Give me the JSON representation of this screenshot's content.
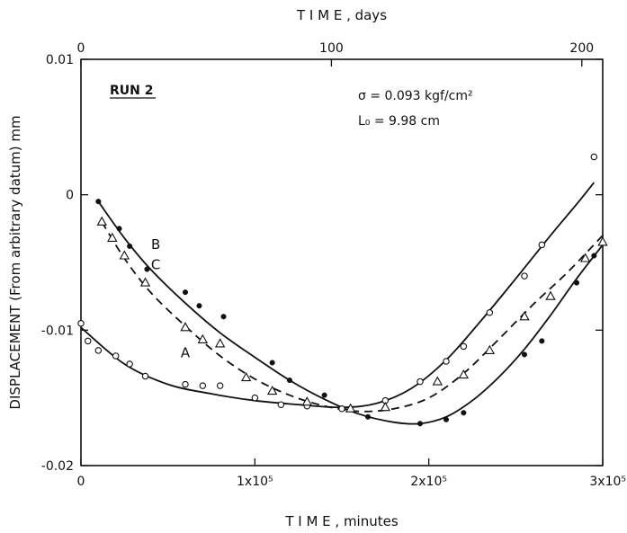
{
  "chart_data": {
    "type": "scatter",
    "title": "",
    "xlabel": "T I M E ,  minutes",
    "xlabel_top": "T I M E ,  days",
    "ylabel": "DISPLACEMENT (From arbitrary datum) mm",
    "xlim": [
      0,
      300000
    ],
    "ylim": [
      -0.02,
      0.01
    ],
    "grid": false,
    "x_ticks": [
      0,
      100000,
      200000,
      300000
    ],
    "x_tick_labels": [
      "0",
      "1x10⁵",
      "2x10⁵",
      "3x10⁵"
    ],
    "y_ticks": [
      -0.02,
      -0.01,
      0,
      0.01
    ],
    "y_tick_labels": [
      "-0.02",
      "-0.01",
      "0",
      "0.01"
    ],
    "x_top_ticks_days": [
      0,
      100,
      200
    ],
    "x_top_tick_labels": [
      "0",
      "100",
      "200"
    ],
    "annotations": {
      "run": "RUN 2",
      "sigma": "σ = 0.093 kgf/cm²",
      "length": "L₀ = 9.98 cm"
    },
    "series": [
      {
        "name": "A",
        "marker": "circle",
        "line": "solid",
        "points": [
          [
            0,
            -0.0095
          ],
          [
            4000,
            -0.0108
          ],
          [
            10000,
            -0.0115
          ],
          [
            20000,
            -0.0119
          ],
          [
            28000,
            -0.0125
          ],
          [
            37000,
            -0.0134
          ],
          [
            60000,
            -0.014
          ],
          [
            70000,
            -0.0141
          ],
          [
            80000,
            -0.0141
          ],
          [
            100000,
            -0.015
          ],
          [
            115000,
            -0.0155
          ],
          [
            130000,
            -0.0156
          ],
          [
            150000,
            -0.0158
          ],
          [
            175000,
            -0.0152
          ],
          [
            195000,
            -0.0138
          ],
          [
            210000,
            -0.0123
          ],
          [
            220000,
            -0.0112
          ],
          [
            235000,
            -0.0087
          ],
          [
            255000,
            -0.006
          ],
          [
            265000,
            -0.0037
          ],
          [
            295000,
            0.0028
          ]
        ],
        "curve": [
          [
            0,
            -0.0098
          ],
          [
            25000,
            -0.0125
          ],
          [
            50000,
            -0.014
          ],
          [
            75000,
            -0.0147
          ],
          [
            100000,
            -0.0152
          ],
          [
            125000,
            -0.0155
          ],
          [
            150000,
            -0.0157
          ],
          [
            170000,
            -0.0154
          ],
          [
            190000,
            -0.0143
          ],
          [
            210000,
            -0.0122
          ],
          [
            230000,
            -0.0093
          ],
          [
            250000,
            -0.0062
          ],
          [
            270000,
            -0.003
          ],
          [
            285000,
            -0.0007
          ],
          [
            295000,
            0.0009
          ]
        ]
      },
      {
        "name": "B",
        "marker": "dot",
        "line": "solid",
        "points": [
          [
            10000,
            -0.0005
          ],
          [
            22000,
            -0.0025
          ],
          [
            28000,
            -0.0038
          ],
          [
            38000,
            -0.0055
          ],
          [
            60000,
            -0.0072
          ],
          [
            68000,
            -0.0082
          ],
          [
            82000,
            -0.009
          ],
          [
            110000,
            -0.0124
          ],
          [
            120000,
            -0.0137
          ],
          [
            140000,
            -0.0148
          ],
          [
            165000,
            -0.0164
          ],
          [
            195000,
            -0.0169
          ],
          [
            210000,
            -0.0166
          ],
          [
            220000,
            -0.0161
          ],
          [
            255000,
            -0.0118
          ],
          [
            265000,
            -0.0108
          ],
          [
            285000,
            -0.0065
          ],
          [
            295000,
            -0.0045
          ]
        ],
        "curve": [
          [
            10000,
            -0.0005
          ],
          [
            25000,
            -0.0032
          ],
          [
            40000,
            -0.0055
          ],
          [
            60000,
            -0.008
          ],
          [
            80000,
            -0.0102
          ],
          [
            100000,
            -0.012
          ],
          [
            120000,
            -0.0137
          ],
          [
            140000,
            -0.0151
          ],
          [
            160000,
            -0.0162
          ],
          [
            180000,
            -0.0168
          ],
          [
            195000,
            -0.0169
          ],
          [
            210000,
            -0.0164
          ],
          [
            225000,
            -0.0152
          ],
          [
            240000,
            -0.0135
          ],
          [
            255000,
            -0.0114
          ],
          [
            270000,
            -0.0089
          ],
          [
            285000,
            -0.0062
          ],
          [
            300000,
            -0.0037
          ]
        ]
      },
      {
        "name": "C",
        "marker": "triangle",
        "line": "dashed",
        "points": [
          [
            12000,
            -0.002
          ],
          [
            18000,
            -0.0032
          ],
          [
            25000,
            -0.0045
          ],
          [
            37000,
            -0.0065
          ],
          [
            60000,
            -0.0098
          ],
          [
            70000,
            -0.0107
          ],
          [
            80000,
            -0.011
          ],
          [
            95000,
            -0.0135
          ],
          [
            110000,
            -0.0145
          ],
          [
            130000,
            -0.0153
          ],
          [
            155000,
            -0.0158
          ],
          [
            175000,
            -0.0157
          ],
          [
            205000,
            -0.0138
          ],
          [
            220000,
            -0.0133
          ],
          [
            235000,
            -0.0115
          ],
          [
            255000,
            -0.009
          ],
          [
            270000,
            -0.0075
          ],
          [
            290000,
            -0.0047
          ],
          [
            300000,
            -0.0035
          ]
        ],
        "curve": [
          [
            12000,
            -0.002
          ],
          [
            25000,
            -0.0047
          ],
          [
            40000,
            -0.0072
          ],
          [
            60000,
            -0.0097
          ],
          [
            80000,
            -0.0119
          ],
          [
            100000,
            -0.0136
          ],
          [
            120000,
            -0.0148
          ],
          [
            140000,
            -0.0156
          ],
          [
            160000,
            -0.016
          ],
          [
            180000,
            -0.0158
          ],
          [
            200000,
            -0.015
          ],
          [
            220000,
            -0.0132
          ],
          [
            240000,
            -0.0107
          ],
          [
            260000,
            -0.0081
          ],
          [
            280000,
            -0.0057
          ],
          [
            300000,
            -0.003
          ]
        ]
      }
    ],
    "curve_labels": [
      {
        "name": "B",
        "x": 43000,
        "y": -0.004
      },
      {
        "name": "C",
        "x": 43000,
        "y": -0.0055
      },
      {
        "name": "A",
        "x": 60000,
        "y": -0.012
      }
    ]
  }
}
